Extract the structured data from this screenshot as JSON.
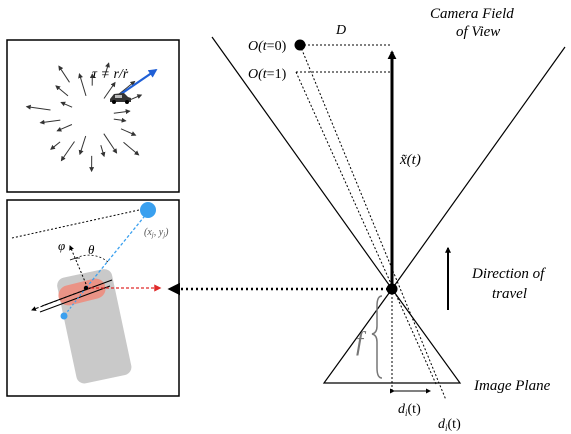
{
  "labels": {
    "camera_fov_line1": "Camera Field",
    "camera_fov_line2": "of View",
    "D": "D",
    "O_t0_O": "O(",
    "O_t0_t": "t",
    "O_t0_rest": "=0)",
    "O_t1_O": "O(",
    "O_t1_t": "t",
    "O_t1_rest": "=1)",
    "x_tilde": "x̃(t)",
    "direction_line1": "Direction of",
    "direction_line2": "travel",
    "f": "f",
    "image_plane": "Image Plane",
    "d1": "d",
    "d1_sub": "i",
    "d1_rest": "(t)",
    "d2": "d",
    "d2_sub": "i",
    "d2_rest": "(t)",
    "tau_formula": "τ = r/ṙ",
    "phi": "φ",
    "theta": "θ",
    "xy_label": "(x",
    "xy_sub_j": "j",
    "xy_mid": ", y",
    "xy_sub_j2": "j",
    "xy_end": ")"
  },
  "colors": {
    "blue_arrow": "#1f5fd6",
    "blue_dot": "#3aa0ef",
    "red_arrow": "#e02a2a",
    "robot_body": "#c9c9c9",
    "robot_red": "#f08a7a",
    "line_black": "#000000"
  }
}
